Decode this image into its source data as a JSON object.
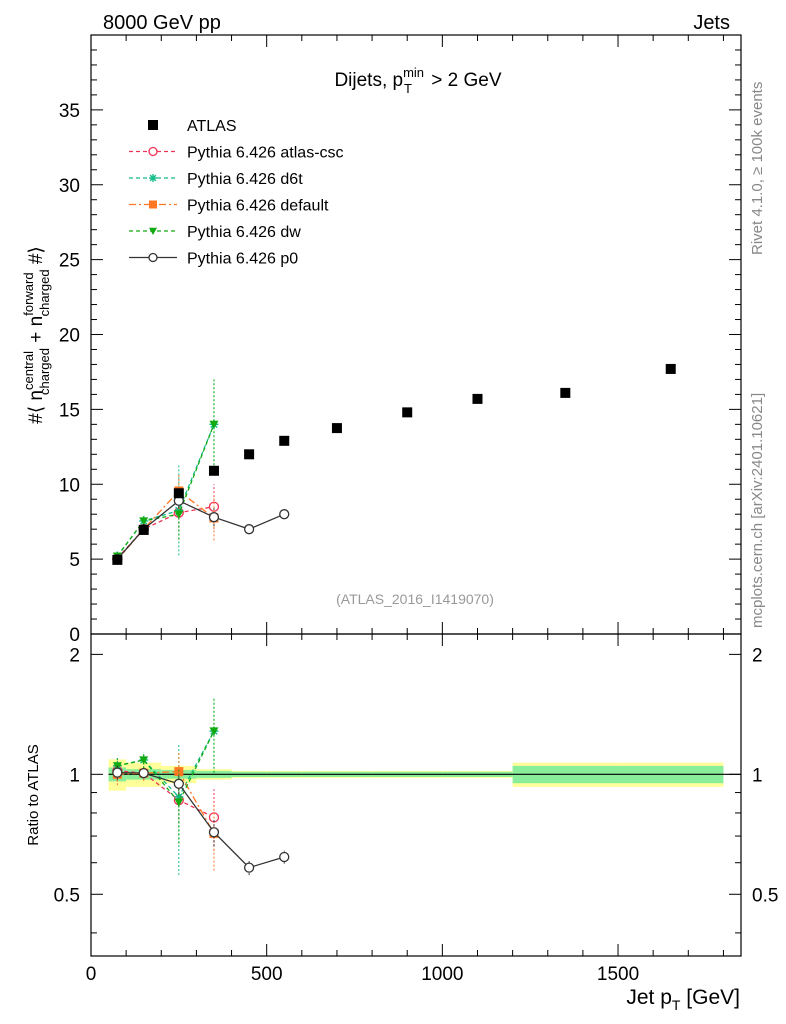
{
  "header": {
    "left": "8000 GeV pp",
    "right": "Jets"
  },
  "side": {
    "rivet": "Rivet 4.1.0, ≥ 100k events",
    "mcplots": "mcplots.cern.ch [arXiv:2401.10621]"
  },
  "chart_data": {
    "type": "scatter",
    "title": "Dijets, p_T^min > 2 GeV",
    "analysis": "(ATLAS_2016_I1419070)",
    "xlabel": "Jet p_T [GeV]",
    "ylabel": "#⟨ n_charged^central + n_charged^forward #⟩",
    "ratio_ylabel": "Ratio to ATLAS",
    "xlim": [
      0,
      1850
    ],
    "ylim": [
      0,
      40
    ],
    "ratio_ylim": [
      0.35,
      2.25
    ],
    "x_ticks": [
      "0",
      "500",
      "1000",
      "1500"
    ],
    "y_ticks": [
      "5",
      "10",
      "15",
      "20",
      "25",
      "30",
      "35"
    ],
    "ratio_ticks": [
      "0.5",
      "1",
      "2"
    ],
    "data": {
      "name": "ATLAS",
      "x": [
        75,
        150,
        250,
        350,
        450,
        550,
        700,
        900,
        1100,
        1350,
        1650
      ],
      "xlo": [
        50,
        100,
        200,
        300,
        400,
        500,
        600,
        800,
        1000,
        1200,
        1500
      ],
      "xhi": [
        100,
        200,
        300,
        400,
        500,
        600,
        800,
        1000,
        1200,
        1500,
        1800
      ],
      "y": [
        4.95,
        6.95,
        9.4,
        10.9,
        12.0,
        12.9,
        13.75,
        14.8,
        15.7,
        16.1,
        17.7
      ],
      "band_inner": [
        0.04,
        0.03,
        0.025,
        0.02,
        0.015,
        0.015,
        0.015,
        0.015,
        0.015,
        0.05,
        0.05
      ],
      "band_outer": [
        0.09,
        0.07,
        0.05,
        0.03,
        0.02,
        0.02,
        0.02,
        0.02,
        0.02,
        0.07,
        0.07
      ]
    },
    "series": [
      {
        "name": "Pythia 6.426 atlas-csc",
        "color": "#ee3355",
        "marker": "open-circle",
        "dash": "4,3",
        "x": [
          75,
          150,
          250,
          350
        ],
        "y": [
          5.05,
          7.0,
          8.1,
          8.5
        ],
        "err": [
          0.3,
          0.3,
          1.0,
          1.5
        ]
      },
      {
        "name": "Pythia 6.426 d6t",
        "color": "#11bb88",
        "marker": "star",
        "dash": "4,3",
        "x": [
          75,
          150,
          250,
          350
        ],
        "y": [
          5.2,
          7.55,
          8.25,
          14.0
        ],
        "err": [
          0.3,
          0.35,
          3.0,
          3.0
        ]
      },
      {
        "name": "Pythia 6.426 default",
        "color": "#ff7722",
        "marker": "filled-square",
        "dash": "7,3,2,3",
        "x": [
          75,
          150,
          250,
          350
        ],
        "y": [
          4.95,
          7.0,
          9.55,
          7.75
        ],
        "err": [
          0.3,
          0.3,
          1.2,
          1.5
        ]
      },
      {
        "name": "Pythia 6.426 dw",
        "color": "#11aa11",
        "marker": "filled-triangle-down",
        "dash": "4,3",
        "x": [
          75,
          150,
          250,
          350
        ],
        "y": [
          5.2,
          7.55,
          8.0,
          14.0
        ],
        "err": [
          0.3,
          0.35,
          1.7,
          3.0
        ]
      },
      {
        "name": "Pythia 6.426 p0",
        "color": "#333333",
        "marker": "open-circle",
        "dash": "",
        "x": [
          75,
          150,
          250,
          350,
          450,
          550
        ],
        "y": [
          5.0,
          7.0,
          8.9,
          7.8,
          7.0,
          8.0
        ],
        "err": [
          0.2,
          0.2,
          0.5,
          0.6,
          0.3,
          0.3
        ]
      }
    ]
  }
}
